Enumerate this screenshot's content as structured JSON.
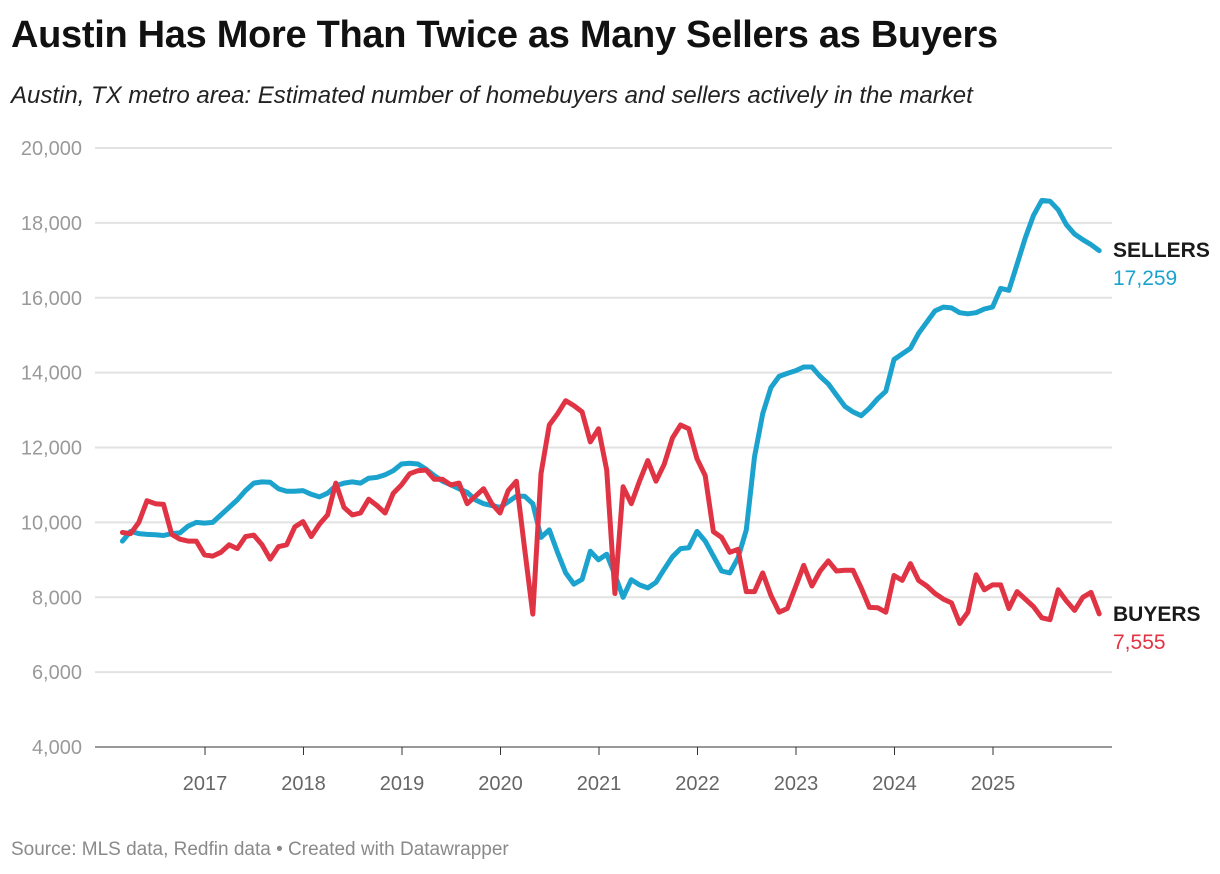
{
  "title": "Austin Has More Than Twice as Many Sellers as Buyers",
  "subtitle": "Austin, TX metro area: Estimated number of homebuyers and sellers actively in the market",
  "source": "Source: MLS data, Redfin data • Created with Datawrapper",
  "chart_data": {
    "type": "line",
    "title": "Austin Has More Than Twice as Many Sellers as Buyers",
    "subtitle": "Austin, TX metro area: Estimated number of homebuyers and sellers actively in the market",
    "xlabel": "",
    "ylabel": "",
    "ylim": [
      4000,
      20000
    ],
    "yticks": [
      "4,000",
      "6,000",
      "8,000",
      "10,000",
      "12,000",
      "14,000",
      "16,000",
      "18,000",
      "20,000"
    ],
    "ytick_values": [
      4000,
      6000,
      8000,
      10000,
      12000,
      14000,
      16000,
      18000,
      20000
    ],
    "xticks": [
      "2017",
      "2018",
      "2019",
      "2020",
      "2021",
      "2022",
      "2023",
      "2024",
      "2025"
    ],
    "grid": true,
    "legend": "direct labels at line ends (right)",
    "x": [
      "2016-02",
      "2016-03",
      "2016-04",
      "2016-05",
      "2016-06",
      "2016-07",
      "2016-08",
      "2016-09",
      "2016-10",
      "2016-11",
      "2016-12",
      "2017-01",
      "2017-02",
      "2017-03",
      "2017-04",
      "2017-05",
      "2017-06",
      "2017-07",
      "2017-08",
      "2017-09",
      "2017-10",
      "2017-11",
      "2017-12",
      "2018-01",
      "2018-02",
      "2018-03",
      "2018-04",
      "2018-05",
      "2018-06",
      "2018-07",
      "2018-08",
      "2018-09",
      "2018-10",
      "2018-11",
      "2018-12",
      "2019-01",
      "2019-02",
      "2019-03",
      "2019-04",
      "2019-05",
      "2019-06",
      "2019-07",
      "2019-08",
      "2019-09",
      "2019-10",
      "2019-11",
      "2019-12",
      "2020-01",
      "2020-02",
      "2020-03",
      "2020-04",
      "2020-05",
      "2020-06",
      "2020-07",
      "2020-08",
      "2020-09",
      "2020-10",
      "2020-11",
      "2020-12",
      "2021-01",
      "2021-02",
      "2021-03",
      "2021-04",
      "2021-05",
      "2021-06",
      "2021-07",
      "2021-08",
      "2021-09",
      "2021-10",
      "2021-11",
      "2021-12",
      "2022-01",
      "2022-02",
      "2022-03",
      "2022-04",
      "2022-05",
      "2022-06",
      "2022-07",
      "2022-08",
      "2022-09",
      "2022-10",
      "2022-11",
      "2022-12",
      "2023-01",
      "2023-02",
      "2023-03",
      "2023-04",
      "2023-05",
      "2023-06",
      "2023-07",
      "2023-08",
      "2023-09",
      "2023-10",
      "2023-11",
      "2023-12",
      "2024-01",
      "2024-02",
      "2024-03",
      "2024-04",
      "2024-05",
      "2024-06",
      "2024-07",
      "2024-08",
      "2024-09",
      "2024-10",
      "2024-11",
      "2024-12",
      "2025-01",
      "2025-02",
      "2025-03",
      "2025-04",
      "2025-05",
      "2025-06",
      "2025-07",
      "2025-08",
      "2025-09",
      "2025-10",
      "2025-11",
      "2025-12",
      "2026-01"
    ],
    "series": [
      {
        "name": "SELLERS",
        "end_label": "17,259",
        "color": "#1ba3ce",
        "values": [
          9500,
          9760,
          9700,
          9680,
          9670,
          9650,
          9700,
          9720,
          9900,
          10000,
          9980,
          10000,
          10200,
          10400,
          10600,
          10850,
          11050,
          11080,
          11070,
          10900,
          10830,
          10830,
          10850,
          10750,
          10680,
          10780,
          10980,
          11050,
          11080,
          11050,
          11180,
          11200,
          11270,
          11380,
          11560,
          11580,
          11560,
          11420,
          11250,
          11100,
          11000,
          10900,
          10800,
          10600,
          10500,
          10450,
          10400,
          10550,
          10700,
          10700,
          10500,
          9600,
          9800,
          9200,
          8650,
          8350,
          8480,
          9230,
          9000,
          9150,
          8600,
          8000,
          8470,
          8330,
          8250,
          8400,
          8750,
          9080,
          9300,
          9320,
          9760,
          9500,
          9100,
          8700,
          8650,
          9050,
          9800,
          11750,
          12900,
          13600,
          13900,
          13980,
          14050,
          14150,
          14150,
          13900,
          13700,
          13400,
          13100,
          12950,
          12850,
          13050,
          13300,
          13500,
          14350,
          14500,
          14650,
          15050,
          15350,
          15650,
          15750,
          15730,
          15600,
          15570,
          15600,
          15700,
          15750,
          16250,
          16200,
          16900,
          17600,
          18200,
          18600,
          18580,
          18350,
          17950,
          17700,
          17550,
          17420,
          17259
        ]
      },
      {
        "name": "BUYERS",
        "end_label": "7,555",
        "color": "#e03445",
        "values": [
          9730,
          9700,
          10000,
          10580,
          10500,
          10480,
          9680,
          9550,
          9500,
          9500,
          9130,
          9100,
          9200,
          9400,
          9300,
          9620,
          9660,
          9400,
          9020,
          9350,
          9400,
          9880,
          10020,
          9620,
          9950,
          10200,
          11050,
          10400,
          10200,
          10250,
          10620,
          10450,
          10250,
          10780,
          11000,
          11300,
          11380,
          11400,
          11150,
          11150,
          11000,
          11050,
          10500,
          10700,
          10900,
          10500,
          10250,
          10850,
          11100,
          9300,
          7550,
          11300,
          12600,
          12900,
          13250,
          13120,
          12950,
          12150,
          12500,
          11400,
          8100,
          10950,
          10500,
          11100,
          11650,
          11100,
          11550,
          12250,
          12600,
          12500,
          11700,
          11250,
          9750,
          9600,
          9200,
          9280,
          8150,
          8150,
          8650,
          8050,
          7600,
          7700,
          8270,
          8850,
          8300,
          8700,
          8970,
          8700,
          8720,
          8720,
          8250,
          7730,
          7720,
          7600,
          8580,
          8450,
          8900,
          8450,
          8300,
          8100,
          7950,
          7850,
          7300,
          7600,
          8600,
          8200,
          8330,
          8330,
          7700,
          8150,
          7950,
          7750,
          7450,
          7400,
          8200,
          7900,
          7650,
          8000,
          8130,
          7555
        ]
      }
    ]
  }
}
